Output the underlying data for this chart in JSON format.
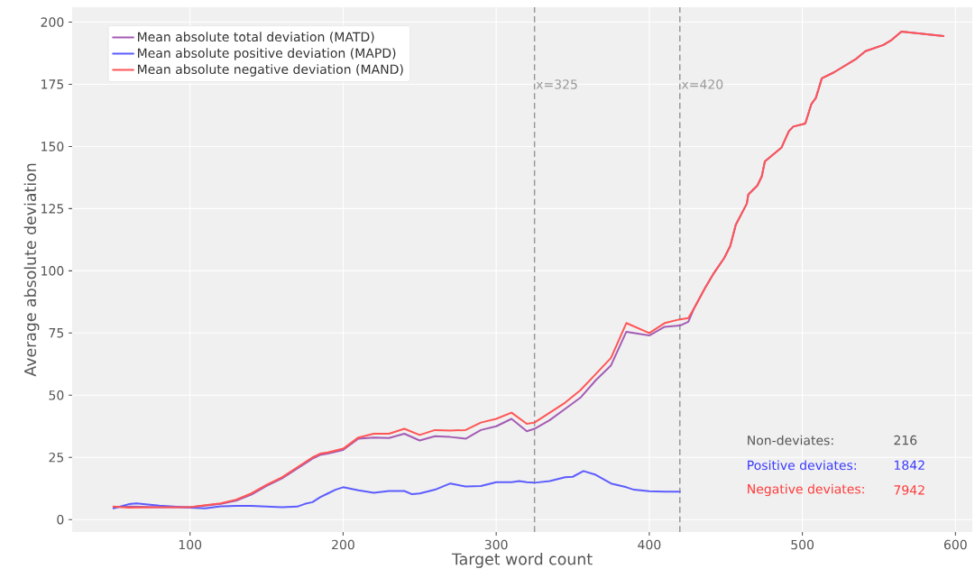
{
  "chart_data": {
    "type": "line",
    "xlabel": "Target word count",
    "ylabel": "Average absolute deviation",
    "xlim": [
      23,
      611
    ],
    "ylim": [
      -5,
      206
    ],
    "xticks": [
      100,
      200,
      300,
      400,
      500,
      600
    ],
    "yticks": [
      0,
      25,
      50,
      75,
      100,
      125,
      150,
      175,
      200
    ],
    "grid": true,
    "legend": "top left",
    "line_style": "solid",
    "marker": "none",
    "series": [
      {
        "name": "Mean absolute total deviation (MATD)",
        "color": "#a45cb4",
        "x": [
          50,
          60,
          80,
          100,
          110,
          120,
          130,
          140,
          150,
          160,
          170,
          180,
          185,
          190,
          200,
          210,
          220,
          230,
          240,
          250,
          260,
          270,
          280,
          290,
          300,
          310,
          320,
          325,
          335,
          345,
          355,
          365,
          375,
          385,
          400,
          410,
          420,
          425.5,
          429.4,
          436.3,
          442.2,
          449,
          452.9,
          456.5,
          463.7,
          464.7,
          470.6,
          473.5,
          475.5,
          486.3,
          491.2,
          494.1,
          501.9,
          505.9,
          508.8,
          512.7,
          520.6,
          535.3,
          541.2,
          552.9,
          557.8,
          564.7,
          592.2
        ],
        "values": [
          5,
          5.2,
          5,
          5,
          5.6,
          6.3,
          7.6,
          10,
          13.5,
          16.5,
          20.5,
          24.5,
          26,
          26.5,
          28,
          32.5,
          33,
          32.8,
          34.5,
          31.8,
          33.5,
          33.2,
          32.5,
          36,
          37.5,
          40.5,
          35.5,
          36.5,
          40,
          44.5,
          49,
          56,
          62,
          75.5,
          74,
          77.5,
          78,
          79.5,
          85.1,
          93,
          99.1,
          105.2,
          110,
          118.5,
          127,
          130.7,
          134.3,
          138,
          144,
          149.5,
          156.2,
          158,
          159.2,
          167.1,
          169.5,
          177.4,
          179.8,
          185.3,
          188.3,
          190.8,
          192.6,
          196.2,
          194.4
        ]
      },
      {
        "name": "Mean absolute positive deviation (MAPD)",
        "color": "#5c5cff",
        "x": [
          50,
          60,
          65,
          80,
          100,
          110,
          120,
          130,
          140,
          150,
          160,
          170,
          175,
          180,
          185,
          190,
          195,
          200,
          210,
          220,
          230,
          240,
          245,
          250,
          260,
          270,
          280,
          290,
          300,
          310,
          315,
          320,
          325,
          335,
          345,
          350,
          357,
          365,
          375,
          385,
          390,
          400,
          410,
          420
        ],
        "values": [
          4.5,
          6.2,
          6.5,
          5.6,
          4.8,
          4.5,
          5.3,
          5.5,
          5.5,
          5.2,
          5,
          5.2,
          6.3,
          7,
          9,
          10.5,
          12,
          13,
          11.8,
          10.8,
          11.5,
          11.5,
          10.2,
          10.5,
          12,
          14.5,
          13.3,
          13.5,
          15,
          15,
          15.5,
          15,
          14.8,
          15.5,
          17,
          17.2,
          19.5,
          18,
          14.5,
          13,
          12,
          11.4,
          11.2,
          11.2
        ]
      },
      {
        "name": "Mean absolute negative deviation (MAND)",
        "color": "#ff5555",
        "x": [
          50,
          60,
          80,
          100,
          110,
          120,
          130,
          140,
          150,
          160,
          170,
          180,
          185,
          190,
          200,
          210,
          220,
          230,
          240,
          250,
          260,
          270,
          280,
          290,
          300,
          310,
          320,
          325,
          335,
          345,
          355,
          365,
          375,
          385,
          400,
          410,
          420,
          425.5,
          429.4,
          436.3,
          442.2,
          449,
          452.9,
          456.5,
          463.7,
          464.7,
          470.6,
          473.5,
          475.5,
          486.3,
          491.2,
          494.1,
          501.9,
          505.9,
          508.8,
          512.7,
          520.6,
          535.3,
          541.2,
          552.9,
          557.8,
          564.7,
          592.2
        ],
        "values": [
          5.2,
          4.8,
          5,
          5,
          5.8,
          6.5,
          8,
          10.5,
          14,
          17,
          21,
          25,
          26.5,
          27,
          28.5,
          33,
          34.5,
          34.5,
          36.5,
          34,
          36,
          35.8,
          36,
          39,
          40.5,
          43,
          38.5,
          39,
          43,
          47,
          52,
          58.5,
          65,
          79,
          75,
          79,
          80.5,
          81,
          85.1,
          93,
          99.1,
          105.2,
          110,
          118.5,
          127,
          130.7,
          134.3,
          138,
          144,
          149.5,
          156.2,
          158,
          159.2,
          167.1,
          169.5,
          177.4,
          179.8,
          185.3,
          188.3,
          190.8,
          192.6,
          196.2,
          194.4
        ]
      }
    ],
    "ref_lines": [
      {
        "axis": "x",
        "value": 325,
        "label": "x=325",
        "color": "#999999",
        "line_style": "dashed"
      },
      {
        "axis": "x",
        "value": 420,
        "label": "x=420",
        "color": "#999999",
        "line_style": "dashed"
      }
    ],
    "annotations": [
      "Non-deviates:",
      "216",
      "Positive deviates:",
      "1842",
      "Negative deviates:",
      "7942"
    ]
  }
}
